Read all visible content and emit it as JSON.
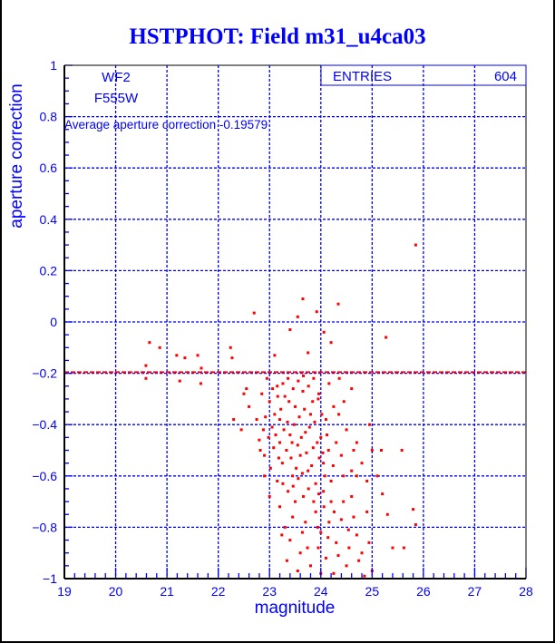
{
  "chart_data": {
    "type": "scatter",
    "title": "HSTPHOT: Field m31_u4ca03",
    "xlabel": "magnitude",
    "ylabel": "aperture correction",
    "xlim": [
      19,
      28
    ],
    "ylim": [
      -1,
      1
    ],
    "grid": true,
    "xticks": [
      "19",
      "20",
      "21",
      "22",
      "23",
      "24",
      "25",
      "26",
      "27",
      "28"
    ],
    "yticks": [
      "-1",
      "-0.8",
      "-0.6",
      "-0.4",
      "-0.2",
      "0",
      "0.2",
      "0.4",
      "0.6",
      "0.8",
      "1"
    ],
    "annotations": {
      "camera": "WF2",
      "filter": "F555W",
      "average_text": "Average aperture correction -0.19579"
    },
    "average_line": -0.19579,
    "stats": {
      "entries_label": "ENTRIES",
      "entries_value": "604"
    },
    "colors": {
      "points": "#ff0000",
      "text": "#0000ff",
      "grid": "#0000ff"
    },
    "points": [
      [
        20.59,
        -0.22
      ],
      [
        20.66,
        -0.08
      ],
      [
        20.86,
        -0.1
      ],
      [
        20.59,
        -0.17
      ],
      [
        21.19,
        -0.13
      ],
      [
        21.25,
        -0.23
      ],
      [
        21.35,
        -0.14
      ],
      [
        21.6,
        -0.13
      ],
      [
        21.67,
        -0.18
      ],
      [
        21.66,
        -0.24
      ],
      [
        22.24,
        -0.1
      ],
      [
        22.27,
        -0.14
      ],
      [
        22.7,
        0.035
      ],
      [
        25.85,
        0.3
      ],
      [
        23.65,
        0.09
      ],
      [
        24.34,
        0.07
      ],
      [
        25.27,
        -0.06
      ],
      [
        24.06,
        -0.04
      ],
      [
        23.4,
        -0.03
      ],
      [
        23.55,
        0.02
      ],
      [
        23.92,
        0.04
      ],
      [
        24.2,
        -0.08
      ],
      [
        23.75,
        -0.12
      ],
      [
        23.1,
        -0.13
      ],
      [
        22.55,
        -0.26
      ],
      [
        22.5,
        -0.28
      ],
      [
        22.3,
        -0.38
      ],
      [
        22.45,
        -0.42
      ],
      [
        22.6,
        -0.33
      ],
      [
        22.75,
        -0.38
      ],
      [
        22.8,
        -0.46
      ],
      [
        22.9,
        -0.52
      ],
      [
        22.85,
        -0.28
      ],
      [
        22.95,
        -0.22
      ],
      [
        23.0,
        -0.31
      ],
      [
        23.05,
        -0.41
      ],
      [
        23.1,
        -0.36
      ],
      [
        23.15,
        -0.25
      ],
      [
        23.2,
        -0.47
      ],
      [
        23.25,
        -0.55
      ],
      [
        23.3,
        -0.29
      ],
      [
        23.35,
        -0.39
      ],
      [
        23.4,
        -0.44
      ],
      [
        23.45,
        -0.6
      ],
      [
        23.5,
        -0.33
      ],
      [
        23.55,
        -0.48
      ],
      [
        23.6,
        -0.52
      ],
      [
        23.65,
        -0.27
      ],
      [
        23.7,
        -0.43
      ],
      [
        23.75,
        -0.58
      ],
      [
        23.8,
        -0.36
      ],
      [
        23.85,
        -0.49
      ],
      [
        23.9,
        -0.63
      ],
      [
        23.95,
        -0.3
      ],
      [
        24.0,
        -0.45
      ],
      [
        24.05,
        -0.55
      ],
      [
        24.1,
        -0.38
      ],
      [
        24.15,
        -0.5
      ],
      [
        24.2,
        -0.62
      ],
      [
        24.25,
        -0.33
      ],
      [
        24.3,
        -0.47
      ],
      [
        24.4,
        -0.52
      ],
      [
        24.5,
        -0.42
      ],
      [
        24.6,
        -0.58
      ],
      [
        24.7,
        -0.47
      ],
      [
        24.8,
        -0.55
      ],
      [
        24.9,
        -0.62
      ],
      [
        25.0,
        -0.5
      ],
      [
        25.1,
        -0.6
      ],
      [
        23.0,
        -0.68
      ],
      [
        23.2,
        -0.72
      ],
      [
        23.3,
        -0.8
      ],
      [
        23.4,
        -0.85
      ],
      [
        23.5,
        -0.7
      ],
      [
        23.6,
        -0.9
      ],
      [
        23.7,
        -0.78
      ],
      [
        23.8,
        -0.95
      ],
      [
        23.9,
        -0.74
      ],
      [
        24.0,
        -0.82
      ],
      [
        24.1,
        -0.92
      ],
      [
        24.2,
        -0.7
      ],
      [
        24.3,
        -0.86
      ],
      [
        24.4,
        -0.77
      ],
      [
        24.5,
        -0.95
      ],
      [
        24.6,
        -0.68
      ],
      [
        24.7,
        -0.83
      ],
      [
        24.8,
        -0.9
      ],
      [
        24.9,
        -0.74
      ],
      [
        25.0,
        -0.97
      ],
      [
        24.85,
        -0.99
      ],
      [
        24.55,
        -0.88
      ],
      [
        24.25,
        -0.98
      ],
      [
        23.55,
        -0.97
      ],
      [
        23.15,
        -0.62
      ],
      [
        22.9,
        -0.6
      ],
      [
        23.95,
        -0.88
      ],
      [
        24.05,
        -0.66
      ],
      [
        23.45,
        -0.76
      ],
      [
        25.4,
        -0.88
      ],
      [
        25.58,
        -0.5
      ],
      [
        25.18,
        -0.5
      ],
      [
        25.8,
        -0.73
      ],
      [
        25.85,
        -0.79
      ],
      [
        25.62,
        -0.88
      ],
      [
        25.3,
        -0.75
      ],
      [
        24.7,
        -0.6
      ],
      [
        25.2,
        -0.67
      ],
      [
        24.95,
        -0.4
      ],
      [
        24.6,
        -0.26
      ],
      [
        24.45,
        -0.31
      ],
      [
        24.35,
        -0.36
      ],
      [
        23.12,
        -0.44
      ],
      [
        23.22,
        -0.34
      ],
      [
        23.28,
        -0.42
      ],
      [
        23.33,
        -0.5
      ],
      [
        23.38,
        -0.31
      ],
      [
        23.42,
        -0.53
      ],
      [
        23.48,
        -0.4
      ],
      [
        23.52,
        -0.57
      ],
      [
        23.58,
        -0.37
      ],
      [
        23.62,
        -0.45
      ],
      [
        23.68,
        -0.34
      ],
      [
        23.72,
        -0.51
      ],
      [
        23.78,
        -0.41
      ],
      [
        23.82,
        -0.56
      ],
      [
        23.88,
        -0.39
      ],
      [
        23.93,
        -0.47
      ],
      [
        23.97,
        -0.53
      ],
      [
        24.02,
        -0.36
      ],
      [
        24.08,
        -0.6
      ],
      [
        24.12,
        -0.44
      ],
      [
        23.18,
        -0.53
      ],
      [
        23.26,
        -0.63
      ],
      [
        23.36,
        -0.66
      ],
      [
        23.46,
        -0.64
      ],
      [
        23.56,
        -0.61
      ],
      [
        23.66,
        -0.68
      ],
      [
        23.76,
        -0.65
      ],
      [
        23.86,
        -0.7
      ],
      [
        23.96,
        -0.67
      ],
      [
        24.06,
        -0.72
      ],
      [
        24.16,
        -0.78
      ],
      [
        24.26,
        -0.74
      ],
      [
        23.06,
        -0.26
      ],
      [
        23.16,
        -0.29
      ],
      [
        23.26,
        -0.24
      ],
      [
        23.36,
        -0.22
      ],
      [
        23.46,
        -0.26
      ],
      [
        23.56,
        -0.23
      ],
      [
        23.66,
        -0.21
      ],
      [
        23.76,
        -0.25
      ],
      [
        23.86,
        -0.22
      ],
      [
        23.96,
        -0.28
      ],
      [
        24.16,
        -0.24
      ],
      [
        24.36,
        -0.22
      ],
      [
        23.02,
        -0.57
      ],
      [
        22.98,
        -0.45
      ],
      [
        22.92,
        -0.37
      ],
      [
        22.88,
        -0.42
      ],
      [
        22.82,
        -0.5
      ],
      [
        23.08,
        -0.49
      ],
      [
        23.2,
        -0.38
      ],
      [
        23.44,
        -0.47
      ],
      [
        23.64,
        -0.59
      ],
      [
        23.84,
        -0.31
      ],
      [
        24.04,
        -0.51
      ],
      [
        24.24,
        -0.56
      ],
      [
        24.44,
        -0.6
      ],
      [
        24.64,
        -0.5
      ],
      [
        24.14,
        -0.84
      ],
      [
        24.34,
        -0.91
      ],
      [
        24.54,
        -0.81
      ],
      [
        24.74,
        -0.93
      ],
      [
        24.94,
        -0.86
      ],
      [
        23.74,
        -0.88
      ],
      [
        23.34,
        -0.93
      ],
      [
        23.94,
        -0.8
      ],
      [
        24.44,
        -0.7
      ],
      [
        24.64,
        -0.76
      ],
      [
        23.24,
        -0.83
      ],
      [
        23.64,
        -0.82
      ],
      [
        24.0,
        -0.98
      ]
    ]
  }
}
